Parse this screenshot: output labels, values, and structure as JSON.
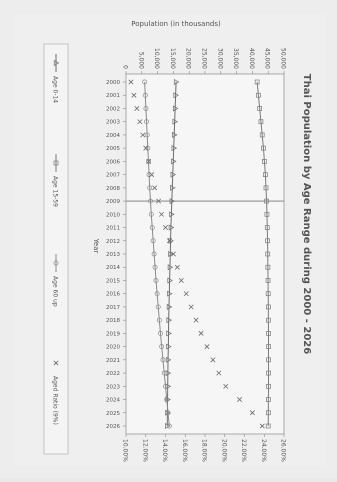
{
  "chart_data": {
    "type": "line",
    "title": "Thai Population by Age Range during 2000 - 2026",
    "xlabel": "Year",
    "ylabel": "Population (in thousands)",
    "x": [
      "2000",
      "2001",
      "2002",
      "2003",
      "2004",
      "2005",
      "2006",
      "2007",
      "2008",
      "2009",
      "2010",
      "2011",
      "2012",
      "2013",
      "2014",
      "2015",
      "2016",
      "2017",
      "2018",
      "2019",
      "2020",
      "2021",
      "2022",
      "2023",
      "2024",
      "2025",
      "2026"
    ],
    "ylim": [
      0,
      50000
    ],
    "y_ticks": [
      "0",
      "5,000",
      "10,000",
      "15,000",
      "20,000",
      "25,000",
      "30,000",
      "35,000",
      "40,000",
      "45,000",
      "50,000"
    ],
    "y2lim": [
      10,
      26
    ],
    "y2_ticks": [
      "10.00%",
      "12.00%",
      "14.00%",
      "16.00%",
      "18.00%",
      "20.00%",
      "22.00%",
      "24.00%",
      "26.00%"
    ],
    "grid": false,
    "reference_year": "2009",
    "legend_position": "bottom",
    "series": [
      {
        "name": "Age 0-14",
        "axis": "left",
        "marker": "triangle",
        "color": "#6b6b6b",
        "values": [
          15850,
          15700,
          15550,
          15400,
          15250,
          15100,
          14950,
          14800,
          14650,
          14500,
          14350,
          14200,
          14100,
          14000,
          13900,
          13800,
          13700,
          13600,
          13500,
          13450,
          13400,
          13300,
          13250,
          13200,
          13150,
          13100,
          13050
        ]
      },
      {
        "name": "Age 15-59",
        "axis": "left",
        "marker": "square",
        "color": "#7a7a7a",
        "values": [
          41500,
          41900,
          42300,
          42700,
          43100,
          43500,
          43800,
          44100,
          44300,
          44500,
          44600,
          44700,
          44800,
          44850,
          44900,
          44950,
          45000,
          45050,
          45050,
          45100,
          45100,
          45100,
          45100,
          45100,
          45050,
          45050,
          45000
        ]
      },
      {
        "name": "Age 60 up",
        "axis": "left",
        "marker": "circle",
        "color": "#8a8a8a",
        "values": [
          5900,
          6100,
          6300,
          6500,
          6700,
          6900,
          7100,
          7300,
          7500,
          7750,
          8000,
          8300,
          8600,
          8900,
          9200,
          9500,
          9850,
          10200,
          10550,
          10900,
          11300,
          11700,
          12100,
          12500,
          12900,
          13300,
          13700
        ]
      },
      {
        "name": "Aged Ratio (9%)",
        "axis": "right",
        "marker": "x",
        "color": "#6a6a6a",
        "values": [
          10.5,
          10.8,
          11.1,
          11.4,
          11.7,
          12.0,
          12.3,
          12.6,
          12.9,
          13.3,
          13.6,
          14.0,
          14.4,
          14.8,
          15.2,
          15.6,
          16.1,
          16.6,
          17.1,
          17.6,
          18.2,
          18.8,
          19.4,
          20.1,
          21.5,
          22.8,
          23.8
        ]
      }
    ]
  }
}
